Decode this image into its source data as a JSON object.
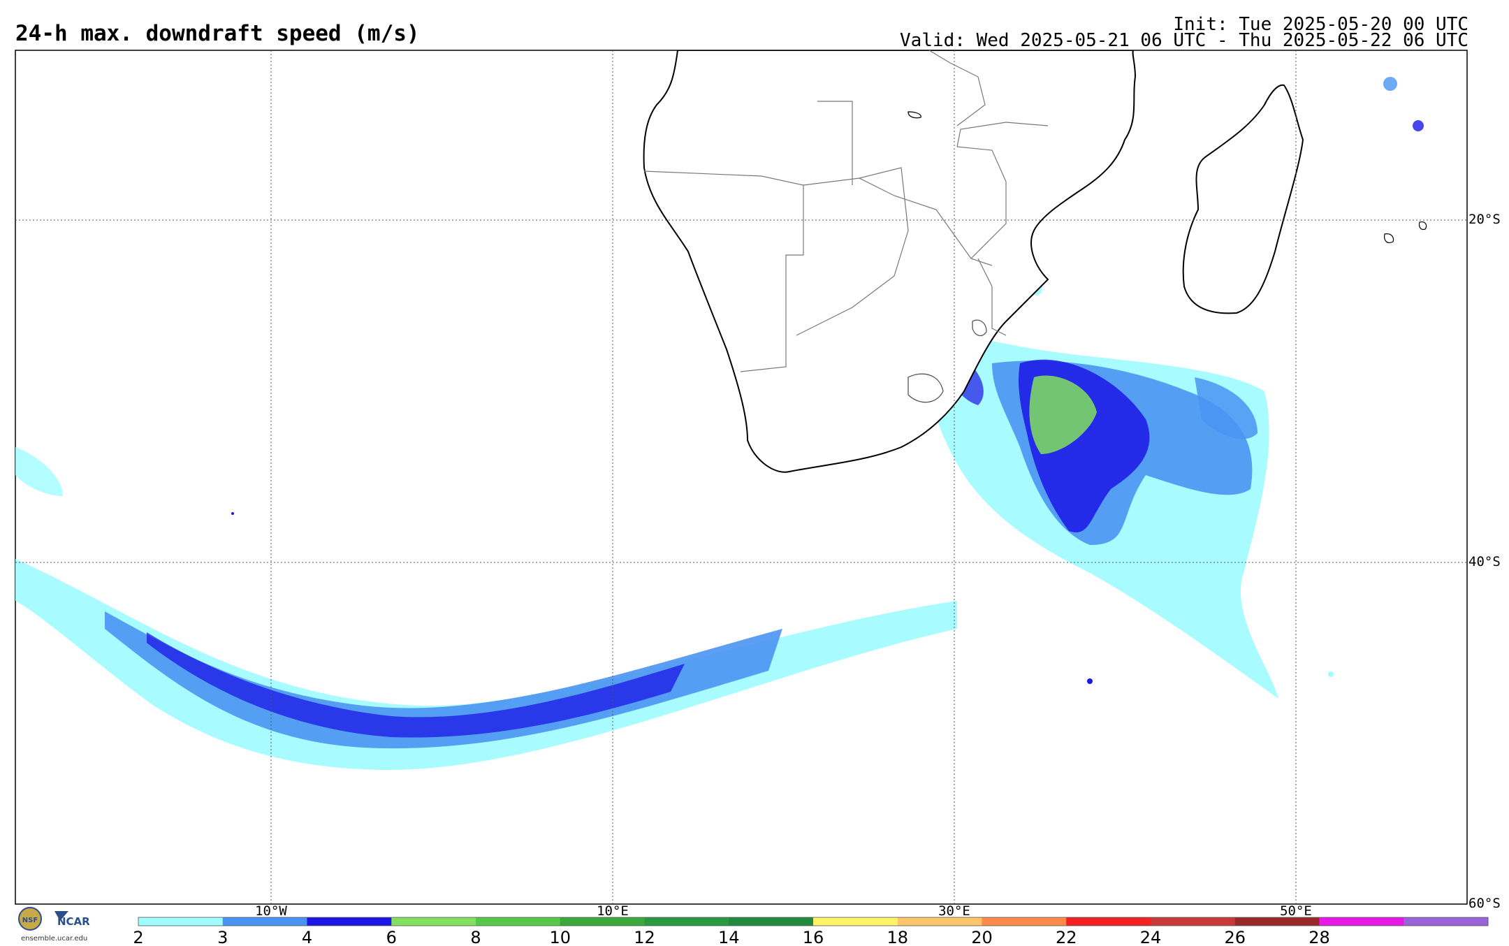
{
  "header": {
    "title": "24-h max. downdraft speed (m/s)",
    "init": "Init: Tue 2025-05-20 00 UTC",
    "valid": "Valid: Wed 2025-05-21 06 UTC - Thu 2025-05-22 06 UTC"
  },
  "map": {
    "lon_range": [
      -25,
      60
    ],
    "lat_range": [
      -60,
      -10
    ],
    "longitude_labels": [
      "10°W",
      "10°E",
      "30°E",
      "50°E"
    ],
    "latitude_labels": [
      "20°S",
      "40°S",
      "60°S"
    ],
    "features": [
      "Southern Africa",
      "Madagascar",
      "Mozambique Channel",
      "Southern Ocean storm band"
    ]
  },
  "colorbar": {
    "units": "m/s",
    "ticks": [
      "2",
      "3",
      "4",
      "6",
      "8",
      "10",
      "12",
      "14",
      "16",
      "18",
      "20",
      "22",
      "24",
      "26",
      "28"
    ],
    "colors": [
      "#9ffcff",
      "#4a93f2",
      "#1b16e6",
      "#82e05e",
      "#56c94a",
      "#3aa83a",
      "#2b9a3f",
      "#208a3e",
      "#fff36a",
      "#ffc56a",
      "#ff8a4a",
      "#f22020",
      "#c83a3a",
      "#9a2a2a",
      "#e619e6",
      "#9a62d8"
    ]
  },
  "footer": {
    "logo_text": "NCAR",
    "logo_seal": "NSF",
    "url": "ensemble.ucar.edu"
  }
}
